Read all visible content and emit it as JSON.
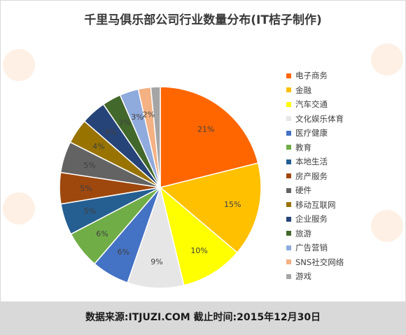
{
  "title": "千里马俱乐部公司行业数量分布(IT桔子制作)",
  "footer": "数据来源:ITJUZI.COM   截止时间:2015年12月30日",
  "watermark": "IT桔子",
  "chart_data": {
    "type": "pie",
    "start_angle_deg": 0,
    "direction": "clockwise",
    "legend_position": "right",
    "slices": [
      {
        "name": "电子商务",
        "value": 21,
        "label": "21%",
        "color": "#ff6600"
      },
      {
        "name": "金融",
        "value": 15,
        "label": "15%",
        "color": "#ffc000"
      },
      {
        "name": "汽车交通",
        "value": 10,
        "label": "10%",
        "color": "#ffff00"
      },
      {
        "name": "文化娱乐体育",
        "value": 9,
        "label": "9%",
        "color": "#e7e6e6"
      },
      {
        "name": "医疗健康",
        "value": 6,
        "label": "6%",
        "color": "#4472c4"
      },
      {
        "name": "教育",
        "value": 6,
        "label": "6%",
        "color": "#70ad47"
      },
      {
        "name": "本地生活",
        "value": 5,
        "label": "5%",
        "color": "#255e91"
      },
      {
        "name": "房产服务",
        "value": 5,
        "label": "5%",
        "color": "#9e480e"
      },
      {
        "name": "硬件",
        "value": 5,
        "label": "5%",
        "color": "#636363"
      },
      {
        "name": "移动互联网",
        "value": 4,
        "label": "4%",
        "color": "#997300"
      },
      {
        "name": "企业服务",
        "value": 4,
        "label": "4%",
        "color": "#264478"
      },
      {
        "name": "旅游",
        "value": 3,
        "label": "3%",
        "color": "#43682b"
      },
      {
        "name": "广告营销",
        "value": 3,
        "label": "3%",
        "color": "#8faadc"
      },
      {
        "name": "SNS社交网络",
        "value": 2,
        "label": "2%",
        "color": "#f4b183"
      },
      {
        "name": "游戏",
        "value": 1.5,
        "label": "",
        "color": "#a5a5a5"
      }
    ]
  }
}
